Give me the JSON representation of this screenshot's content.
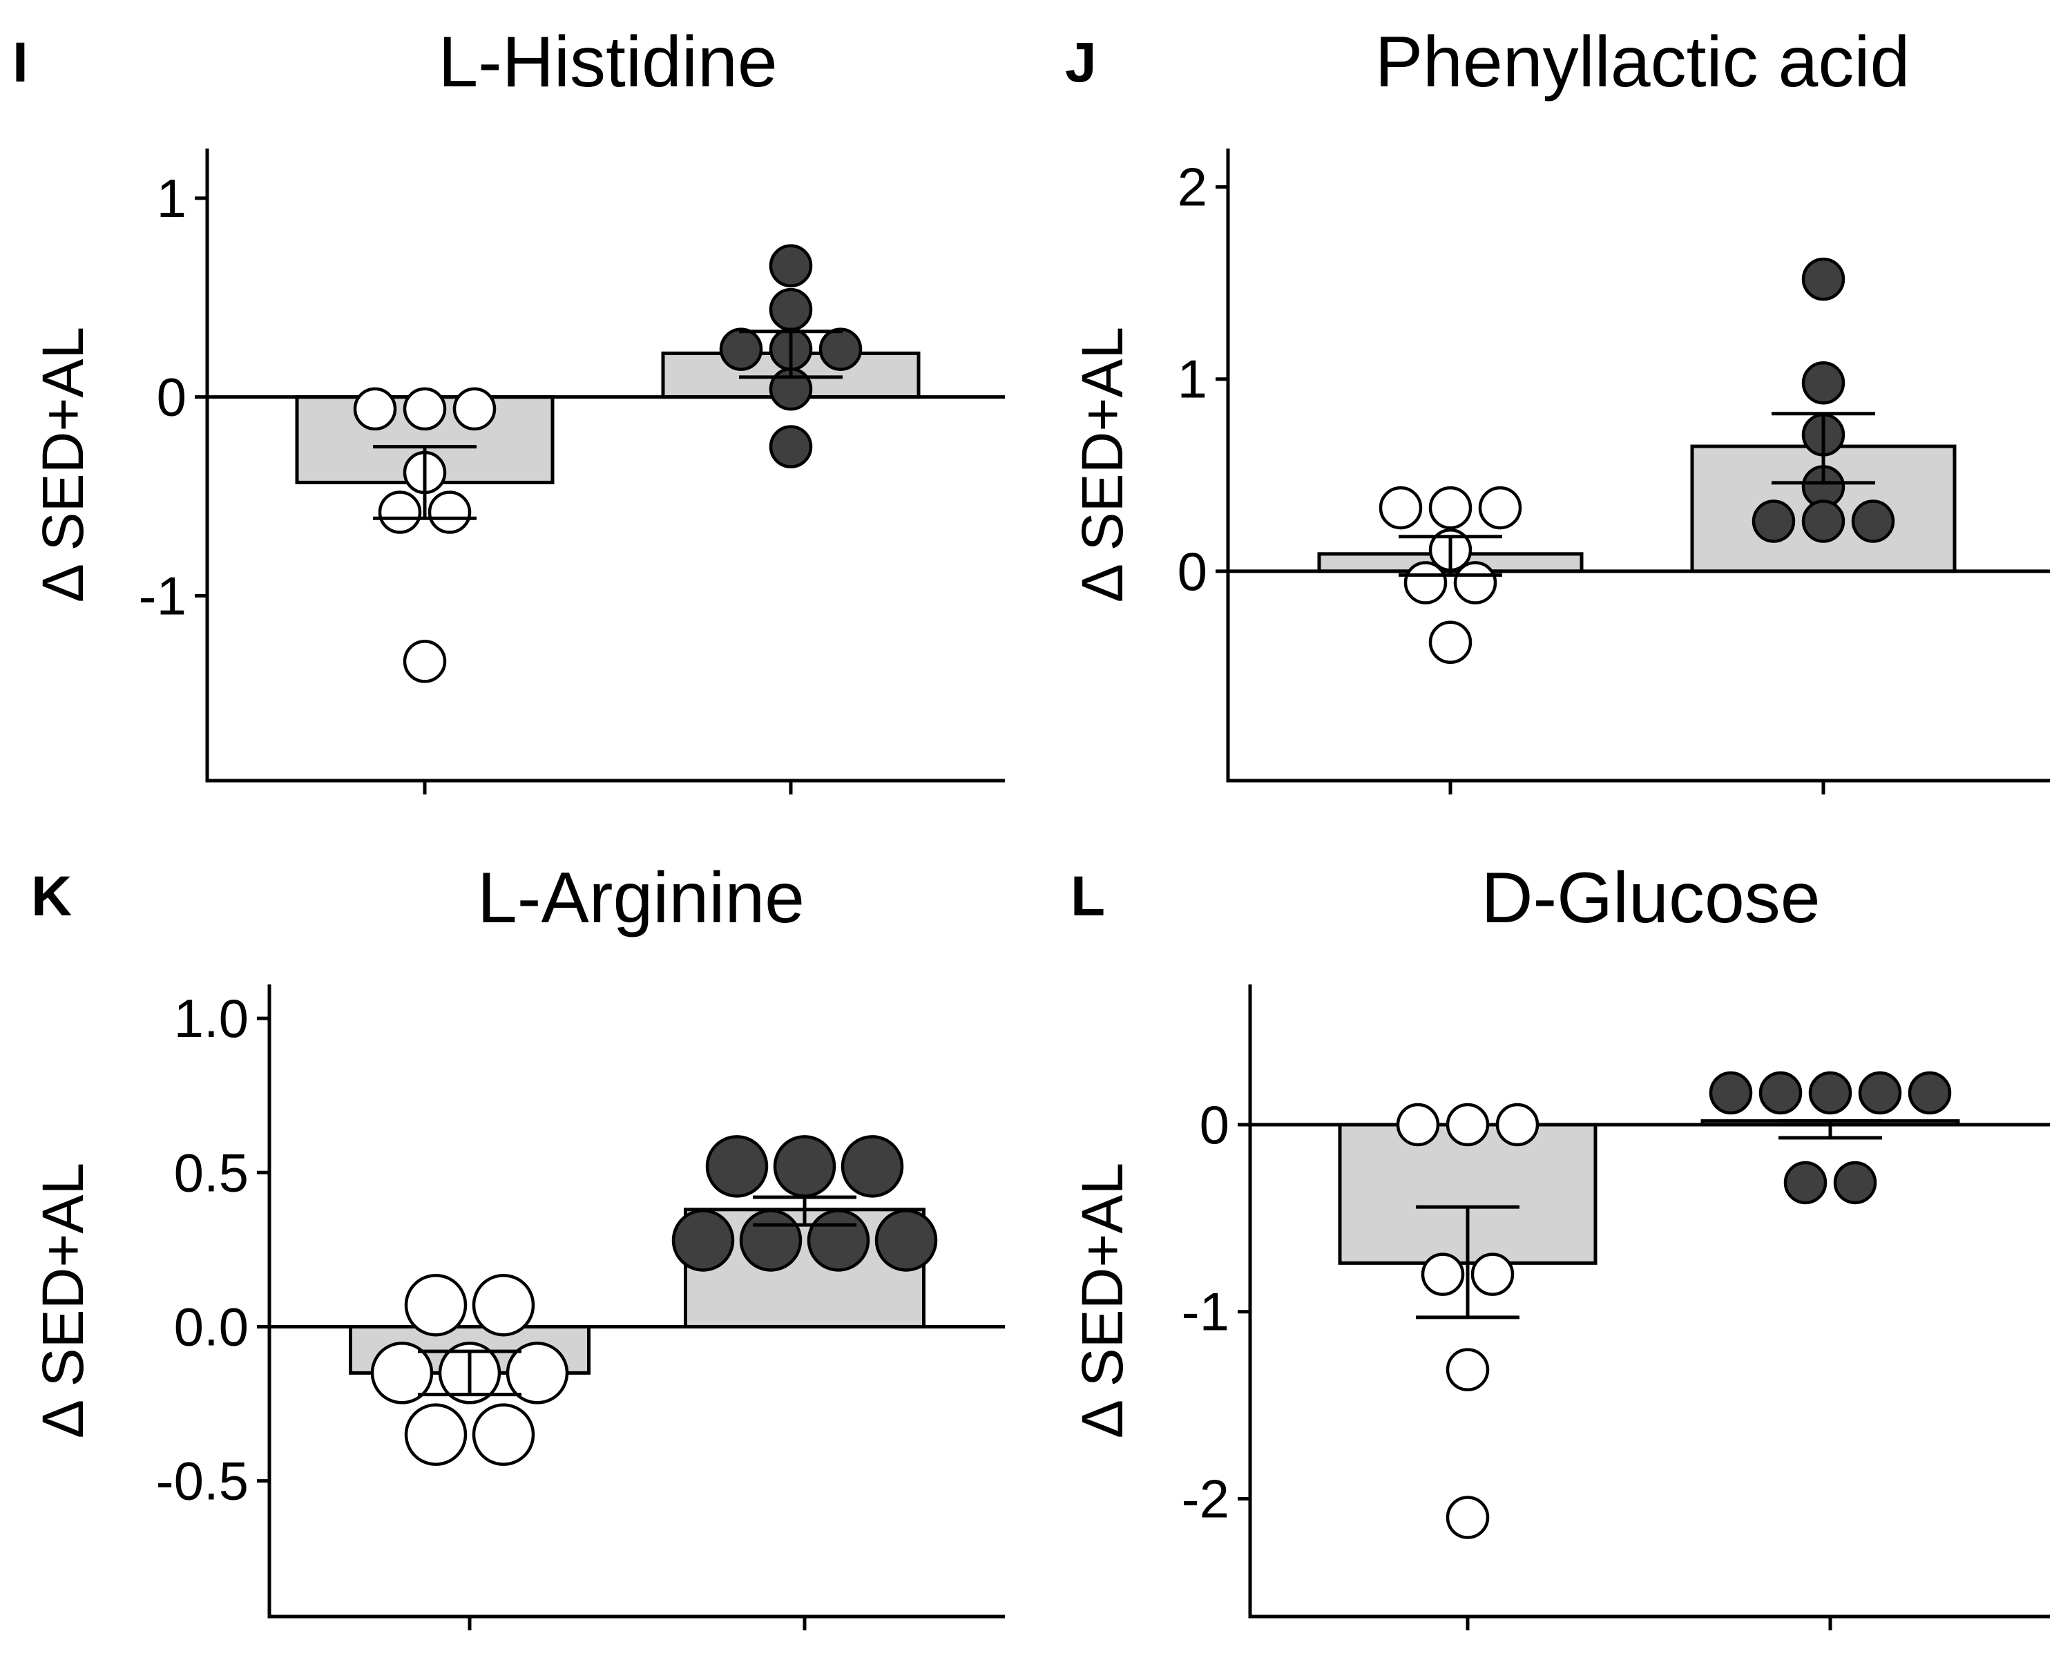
{
  "colors": {
    "bar_fill": "#d3d3d3",
    "dot_sed": "#ffffff",
    "dot_ex": "#3f3f3f",
    "stroke": "#000000"
  },
  "chart_data": [
    {
      "type": "bar",
      "panel": "I",
      "title": "L-Histidine",
      "ylabel": "Δ SED+AL",
      "ylim": [
        -1.93,
        1.25
      ],
      "yticks": [
        1,
        0,
        -1
      ],
      "ytick_labels": [
        "1",
        "0",
        "-1"
      ],
      "categories": [
        "",
        ""
      ],
      "values": [
        -0.43,
        0.22
      ],
      "error": [
        [
          -0.61,
          -0.25
        ],
        [
          0.1,
          0.33
        ]
      ],
      "points": [
        [
          -0.06,
          -0.06,
          -0.06,
          -0.38,
          -0.58,
          -0.58,
          -1.33
        ],
        [
          0.66,
          0.44,
          0.24,
          0.24,
          0.24,
          0.04,
          -0.25
        ]
      ],
      "point_colors": [
        "white",
        "dark"
      ]
    },
    {
      "type": "bar",
      "panel": "J",
      "title": "Phenyllactic acid",
      "ylabel": "Δ SED+AL",
      "ylim": [
        -1.09,
        2.2
      ],
      "yticks": [
        2,
        1,
        0
      ],
      "ytick_labels": [
        "2",
        "1",
        "0"
      ],
      "categories": [
        "",
        ""
      ],
      "values": [
        0.09,
        0.65
      ],
      "error": [
        [
          -0.02,
          0.18
        ],
        [
          0.46,
          0.82
        ]
      ],
      "points": [
        [
          0.33,
          0.33,
          0.33,
          0.11,
          -0.06,
          -0.06,
          -0.37
        ],
        [
          1.52,
          0.98,
          0.71,
          0.44,
          0.26,
          0.26,
          0.26
        ]
      ],
      "point_colors": [
        "white",
        "dark"
      ]
    },
    {
      "type": "bar",
      "panel": "K",
      "title": "L-Arginine",
      "ylabel": "Δ SED+AL",
      "ylim": [
        -0.94,
        1.11
      ],
      "yticks": [
        1.0,
        0.5,
        0.0,
        -0.5
      ],
      "ytick_labels": [
        "1.0",
        "0.5",
        "0.0",
        "-0.5"
      ],
      "categories": [
        "",
        ""
      ],
      "values": [
        -0.15,
        0.38
      ],
      "error": [
        [
          -0.22,
          -0.08
        ],
        [
          0.33,
          0.42
        ]
      ],
      "points": [
        [
          0.07,
          0.07,
          -0.15,
          -0.15,
          -0.15,
          -0.35,
          -0.35
        ],
        [
          0.52,
          0.52,
          0.52,
          0.28,
          0.28,
          0.28,
          0.28
        ]
      ],
      "point_colors": [
        "white",
        "dark"
      ]
    },
    {
      "type": "bar",
      "panel": "L",
      "title": "D-Glucose",
      "ylabel": "Δ SED+AL",
      "ylim": [
        -2.63,
        0.75
      ],
      "yticks": [
        0,
        -1,
        -2
      ],
      "ytick_labels": [
        "0",
        "-1",
        "-2"
      ],
      "categories": [
        "",
        ""
      ],
      "values": [
        -0.74,
        0.02
      ],
      "error": [
        [
          -1.03,
          -0.44
        ],
        [
          -0.07,
          0.02
        ]
      ],
      "points": [
        [
          0.0,
          0.0,
          0.0,
          -0.8,
          -0.8,
          -1.31,
          -2.1
        ],
        [
          0.17,
          0.17,
          0.17,
          0.17,
          0.17,
          -0.31,
          -0.31
        ]
      ],
      "point_colors": [
        "white",
        "dark"
      ]
    }
  ]
}
